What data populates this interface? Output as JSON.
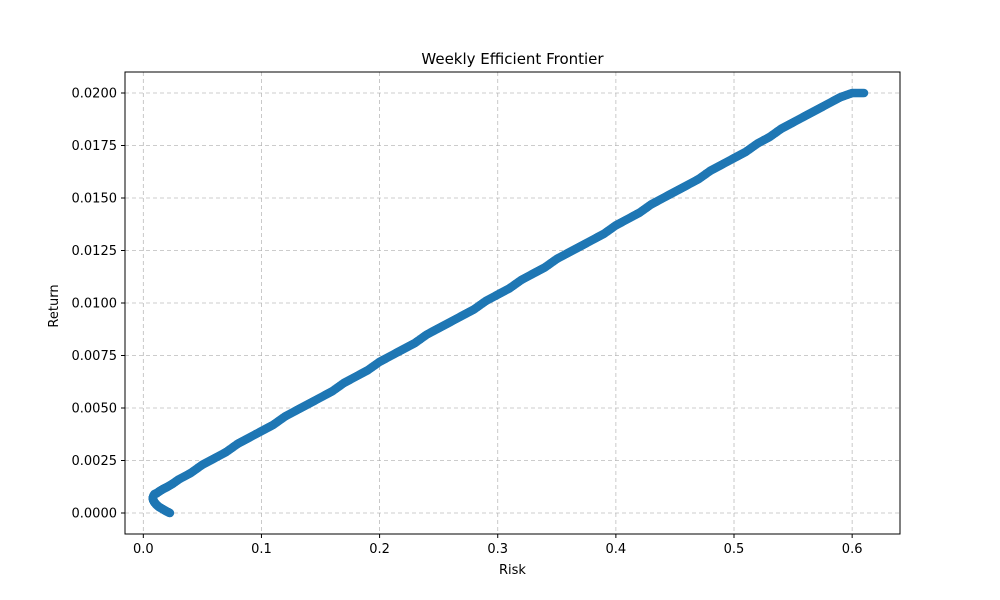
{
  "chart_data": {
    "type": "scatter",
    "title": "Weekly Efficient Frontier",
    "xlabel": "Risk",
    "ylabel": "Return",
    "xlim": [
      -0.0155,
      0.6405
    ],
    "ylim": [
      -0.001,
      0.021
    ],
    "xticks": [
      0.0,
      0.1,
      0.2,
      0.3,
      0.4,
      0.5,
      0.6
    ],
    "xtick_labels": [
      "0.0",
      "0.1",
      "0.2",
      "0.3",
      "0.4",
      "0.5",
      "0.6"
    ],
    "yticks": [
      0.0,
      0.0025,
      0.005,
      0.0075,
      0.01,
      0.0125,
      0.015,
      0.0175,
      0.02
    ],
    "ytick_labels": [
      "0.0000",
      "0.0025",
      "0.0050",
      "0.0075",
      "0.0100",
      "0.0125",
      "0.0150",
      "0.0175",
      "0.0200"
    ],
    "grid": true,
    "color": "#1f77b4",
    "series": [
      {
        "x": [
          0.0225,
          0.019,
          0.016,
          0.013,
          0.011,
          0.0095,
          0.0085,
          0.008,
          0.0085,
          0.0095,
          0.0115,
          0.014,
          0.017,
          0.0205,
          0.025,
          0.03,
          0.04,
          0.05,
          0.06,
          0.07,
          0.08,
          0.09,
          0.1,
          0.11,
          0.12,
          0.13,
          0.14,
          0.15,
          0.16,
          0.17,
          0.18,
          0.19,
          0.2,
          0.21,
          0.22,
          0.23,
          0.24,
          0.25,
          0.26,
          0.27,
          0.28,
          0.29,
          0.3,
          0.31,
          0.32,
          0.33,
          0.34,
          0.35,
          0.36,
          0.37,
          0.38,
          0.39,
          0.4,
          0.41,
          0.42,
          0.43,
          0.44,
          0.45,
          0.46,
          0.47,
          0.48,
          0.49,
          0.5,
          0.51,
          0.52,
          0.53,
          0.54,
          0.55,
          0.56,
          0.57,
          0.58,
          0.59,
          0.6,
          0.61
        ],
        "y": [
          0.0,
          0.0001,
          0.0002,
          0.0003,
          0.0004,
          0.0005,
          0.0006,
          0.0007,
          0.0008,
          0.0009,
          0.00095,
          0.00105,
          0.00115,
          0.00125,
          0.0014,
          0.0016,
          0.0019,
          0.0023,
          0.0026,
          0.0029,
          0.0033,
          0.0036,
          0.0039,
          0.0042,
          0.0046,
          0.0049,
          0.0052,
          0.0055,
          0.0058,
          0.0062,
          0.0065,
          0.0068,
          0.0072,
          0.0075,
          0.0078,
          0.0081,
          0.0085,
          0.0088,
          0.0091,
          0.0094,
          0.0097,
          0.0101,
          0.0104,
          0.0107,
          0.0111,
          0.0114,
          0.0117,
          0.0121,
          0.0124,
          0.0127,
          0.013,
          0.0133,
          0.0137,
          0.014,
          0.0143,
          0.0147,
          0.015,
          0.0153,
          0.0156,
          0.0159,
          0.0163,
          0.0166,
          0.0169,
          0.0172,
          0.0176,
          0.0179,
          0.0183,
          0.0186,
          0.0189,
          0.0192,
          0.0195,
          0.0198,
          0.02,
          0.02
        ]
      }
    ]
  }
}
